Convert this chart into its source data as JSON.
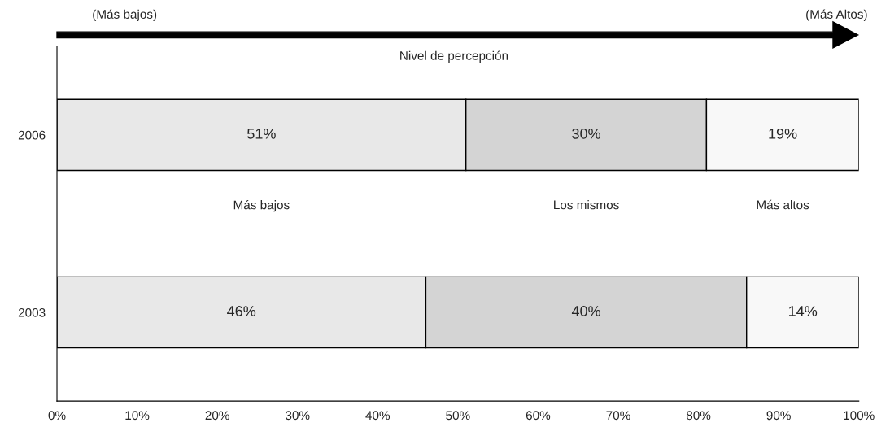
{
  "chart_data": {
    "type": "bar",
    "orientation": "horizontal",
    "stacked": true,
    "categories": [
      "2006",
      "2003"
    ],
    "series": [
      {
        "name": "Más bajos",
        "color": "#e8e8e8",
        "values": [
          51,
          46
        ],
        "value_labels": [
          "51%",
          "46%"
        ]
      },
      {
        "name": "Los mismos",
        "color": "#d4d4d4",
        "values": [
          30,
          40
        ],
        "value_labels": [
          "30%",
          "40%"
        ]
      },
      {
        "name": "Más altos",
        "color": "#f8f8f8",
        "values": [
          19,
          14
        ],
        "value_labels": [
          "19%",
          "14%"
        ]
      }
    ],
    "xlim": [
      0,
      100
    ],
    "xticks": [
      {
        "value": 0,
        "label": "0%"
      },
      {
        "value": 10,
        "label": "10%"
      },
      {
        "value": 20,
        "label": "20%"
      },
      {
        "value": 30,
        "label": "30%"
      },
      {
        "value": 40,
        "label": "40%"
      },
      {
        "value": 50,
        "label": "50%"
      },
      {
        "value": 60,
        "label": "60%"
      },
      {
        "value": 70,
        "label": "70%"
      },
      {
        "value": 80,
        "label": "80%"
      },
      {
        "value": 90,
        "label": "90%"
      },
      {
        "value": 100,
        "label": "100%"
      }
    ],
    "annotations": [
      "(Más bajos)",
      "(Más Altos)",
      "Nivel de percepción"
    ],
    "grid": false
  }
}
